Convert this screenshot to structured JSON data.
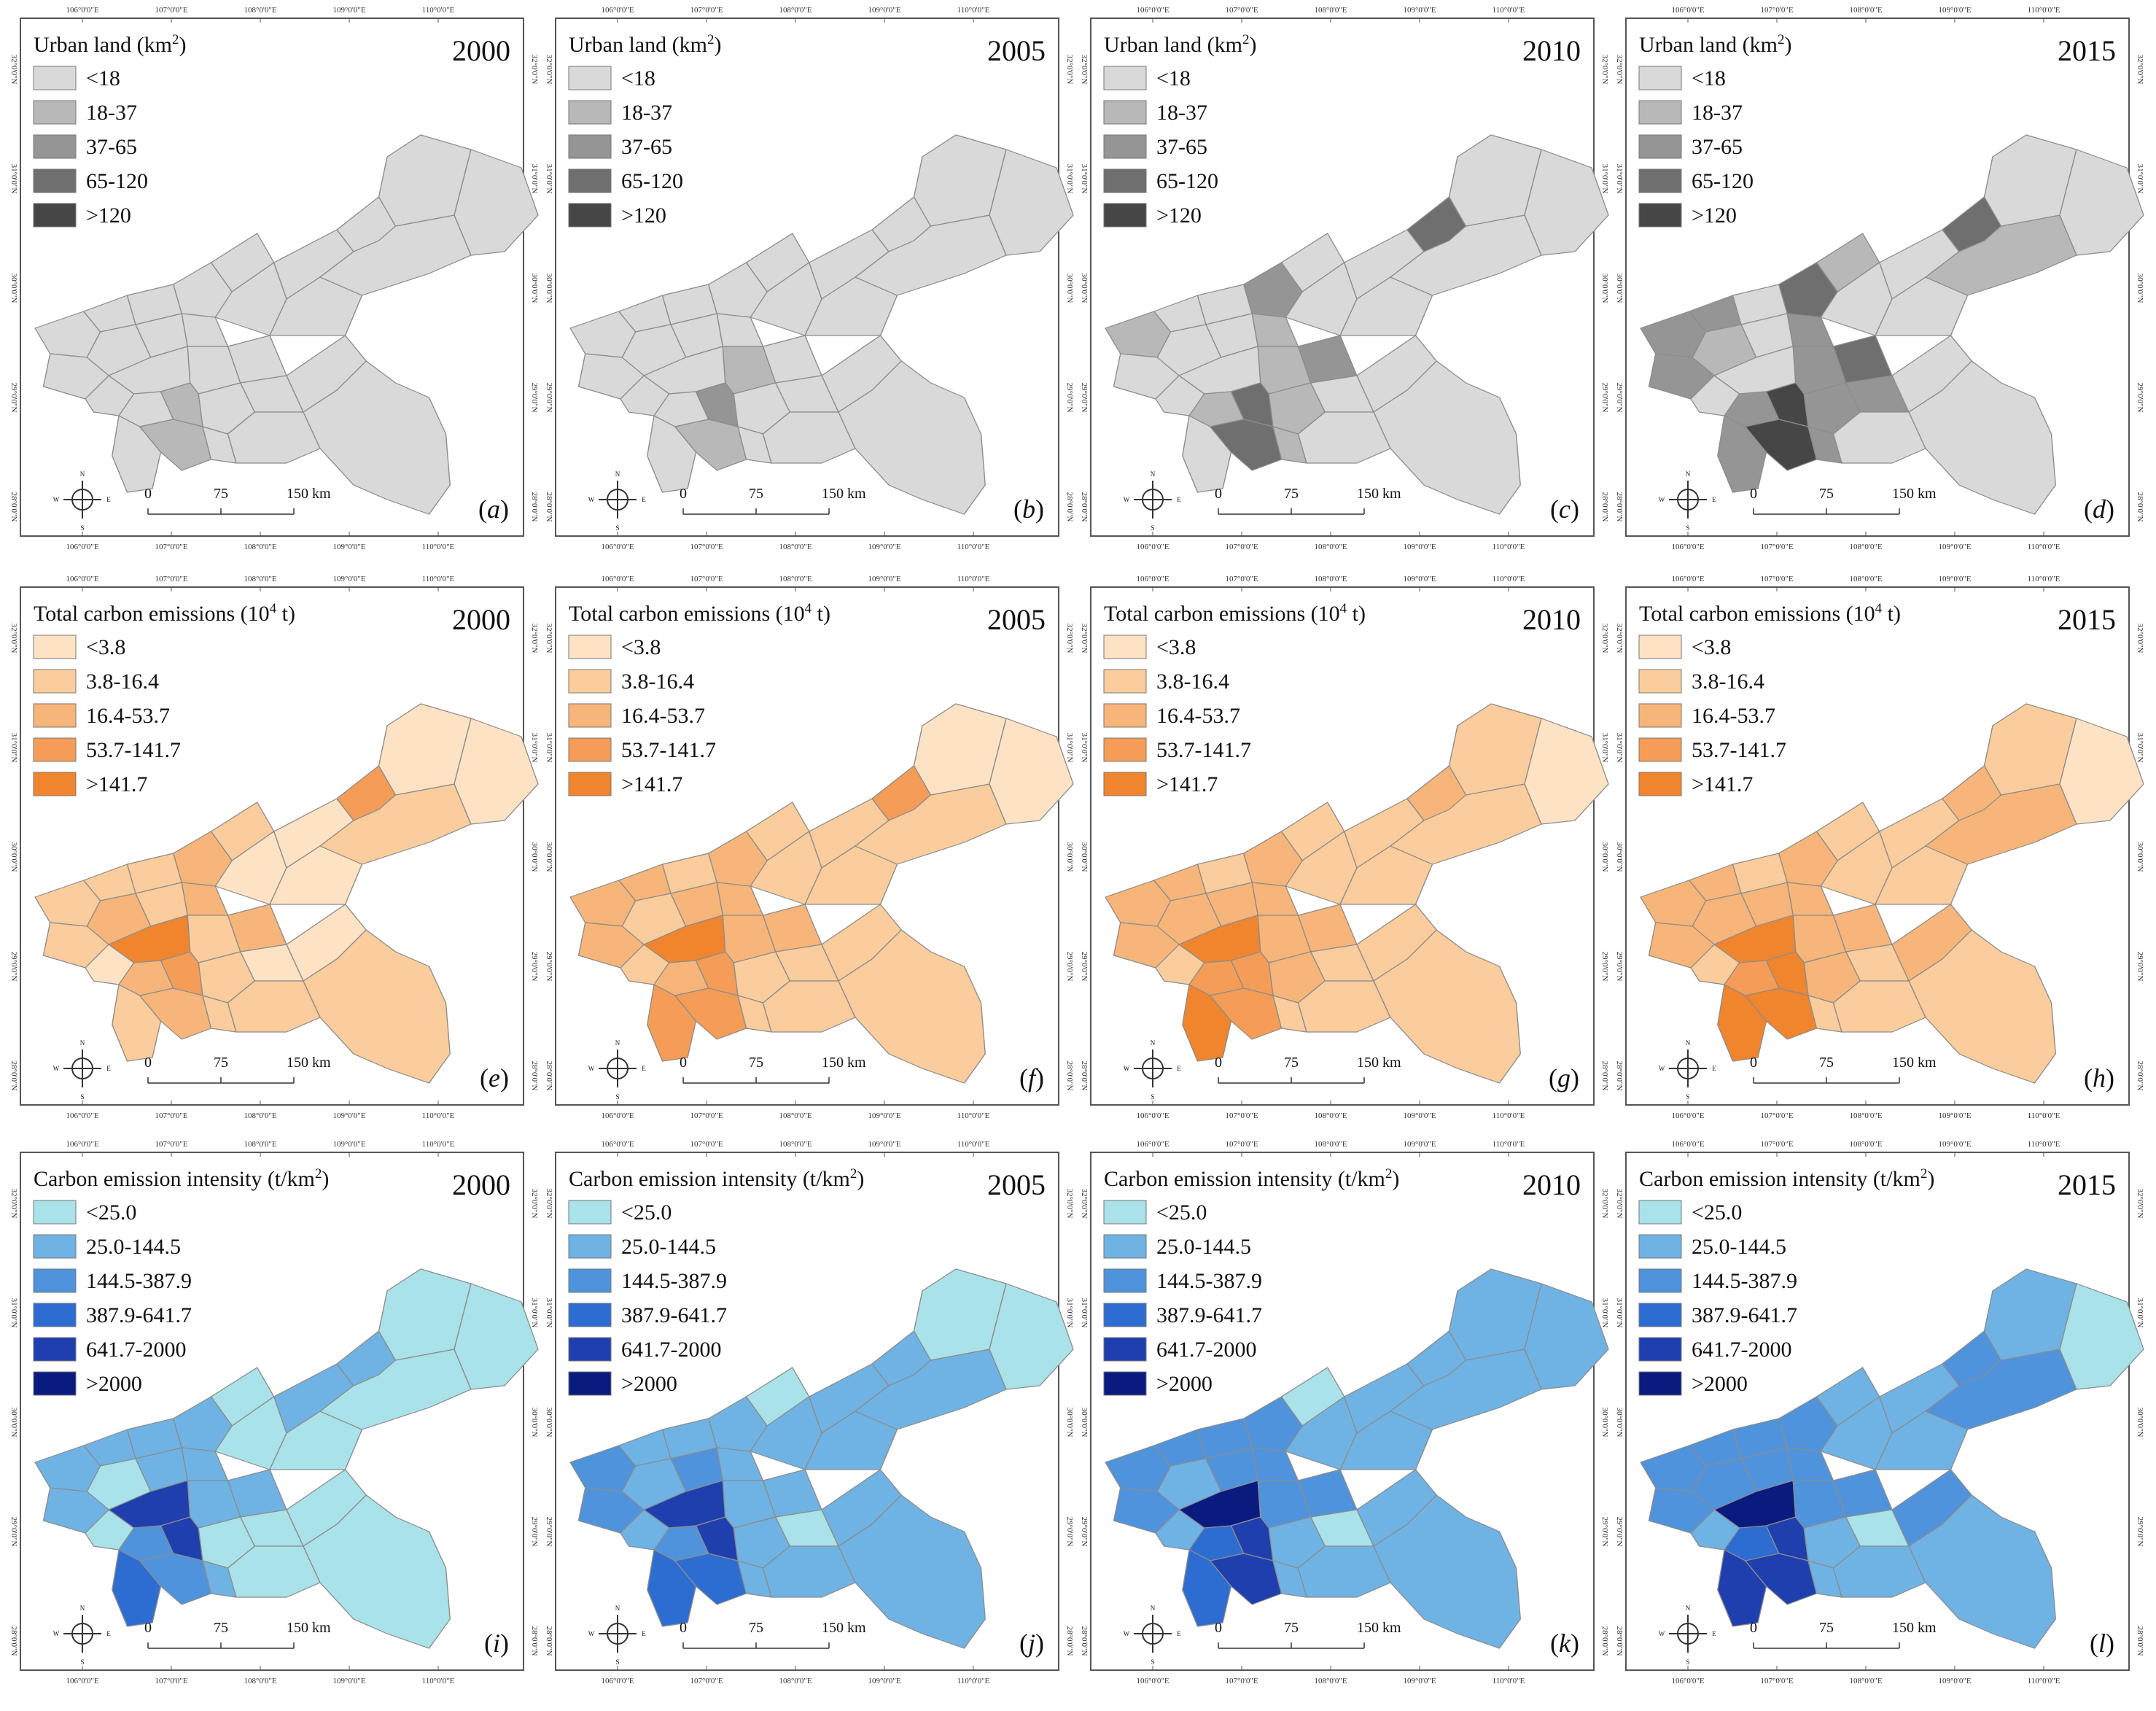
{
  "figure": {
    "columns": [
      {
        "year": "2000"
      },
      {
        "year": "2005"
      },
      {
        "year": "2010"
      },
      {
        "year": "2015"
      }
    ],
    "rows": [
      {
        "key": "urban",
        "legend_title": "Urban land (km",
        "legend_sup": "2",
        "legend_tail": ")",
        "classes": [
          "<18",
          "18-37",
          "37-65",
          "65-120",
          ">120"
        ],
        "colors": [
          "#d9d9d9",
          "#b8b8b8",
          "#959595",
          "#6f6f6f",
          "#464646"
        ],
        "panel_letters": [
          "a",
          "b",
          "c",
          "d"
        ],
        "region_classes": [
          [
            0,
            0,
            0,
            0,
            0,
            0,
            0,
            0,
            0,
            0,
            0,
            0,
            0,
            1,
            1,
            0,
            0,
            0,
            0,
            0,
            0,
            0,
            0,
            0,
            0,
            0,
            0,
            0,
            0
          ],
          [
            0,
            0,
            0,
            0,
            0,
            0,
            0,
            0,
            0,
            0,
            0,
            0,
            1,
            2,
            1,
            0,
            0,
            0,
            0,
            0,
            0,
            0,
            0,
            0,
            0,
            0,
            0,
            0,
            0
          ],
          [
            1,
            0,
            0,
            0,
            0,
            0,
            0,
            0,
            1,
            0,
            2,
            1,
            1,
            3,
            3,
            2,
            1,
            1,
            0,
            0,
            0,
            0,
            0,
            0,
            0,
            3,
            0,
            0,
            0
          ],
          [
            2,
            2,
            2,
            1,
            0,
            0,
            0,
            0,
            2,
            2,
            3,
            2,
            2,
            4,
            4,
            3,
            2,
            2,
            2,
            1,
            0,
            0,
            0,
            0,
            0,
            3,
            1,
            0,
            0
          ]
        ]
      },
      {
        "key": "emissions",
        "legend_title": "Total carbon emissions (10",
        "legend_sup": "4",
        "legend_tail": " t)",
        "classes": [
          "<3.8",
          "3.8-16.4",
          "16.4-53.7",
          "53.7-141.7",
          ">141.7"
        ],
        "colors": [
          "#fde2c4",
          "#fbcc9c",
          "#f8b579",
          "#f59d57",
          "#f0852e"
        ],
        "panel_letters": [
          "e",
          "f",
          "g",
          "h"
        ],
        "region_classes": [
          [
            1,
            1,
            1,
            2,
            0,
            1,
            1,
            4,
            2,
            1,
            2,
            2,
            1,
            3,
            2,
            2,
            1,
            1,
            0,
            1,
            0,
            1,
            0,
            0,
            0,
            3,
            1,
            0,
            0
          ],
          [
            2,
            2,
            2,
            1,
            1,
            1,
            2,
            4,
            2,
            3,
            2,
            2,
            2,
            3,
            3,
            2,
            1,
            1,
            1,
            1,
            1,
            1,
            1,
            1,
            1,
            3,
            1,
            0,
            0
          ],
          [
            2,
            2,
            2,
            2,
            1,
            1,
            2,
            4,
            3,
            4,
            2,
            2,
            2,
            3,
            3,
            2,
            2,
            1,
            1,
            1,
            1,
            1,
            1,
            1,
            1,
            2,
            1,
            1,
            0
          ],
          [
            2,
            2,
            2,
            2,
            1,
            1,
            2,
            4,
            3,
            4,
            2,
            2,
            2,
            4,
            4,
            2,
            2,
            1,
            1,
            1,
            1,
            1,
            1,
            1,
            2,
            2,
            2,
            1,
            0
          ]
        ]
      },
      {
        "key": "intensity",
        "legend_title": "Carbon emission intensity (t/km",
        "legend_sup": "2",
        "legend_tail": ")",
        "classes": [
          "<25.0",
          "25.0-144.5",
          "144.5-387.9",
          "387.9-641.7",
          "641.7-2000",
          ">2000"
        ],
        "colors": [
          "#a9e2e9",
          "#6fb3e4",
          "#4f93dd",
          "#2d6dd1",
          "#1f3faf",
          "#0a1b80"
        ],
        "panel_letters": [
          "i",
          "j",
          "k",
          "l"
        ],
        "region_classes": [
          [
            1,
            1,
            1,
            0,
            0,
            1,
            1,
            4,
            2,
            3,
            1,
            1,
            1,
            4,
            2,
            1,
            0,
            1,
            0,
            0,
            0,
            0,
            1,
            0,
            0,
            1,
            0,
            0,
            0
          ],
          [
            2,
            1,
            2,
            1,
            1,
            1,
            2,
            4,
            2,
            3,
            1,
            1,
            1,
            4,
            3,
            1,
            1,
            1,
            0,
            0,
            1,
            1,
            1,
            1,
            1,
            1,
            1,
            0,
            0
          ],
          [
            2,
            2,
            2,
            1,
            1,
            2,
            2,
            5,
            3,
            3,
            2,
            2,
            2,
            4,
            4,
            2,
            1,
            1,
            0,
            0,
            1,
            1,
            1,
            1,
            1,
            1,
            1,
            1,
            1
          ],
          [
            2,
            2,
            2,
            2,
            1,
            2,
            2,
            5,
            3,
            4,
            2,
            2,
            2,
            4,
            4,
            2,
            1,
            1,
            0,
            1,
            1,
            1,
            1,
            1,
            2,
            2,
            2,
            1,
            0
          ]
        ]
      }
    ],
    "axes": {
      "lon_labels": [
        "106°0'0\"E",
        "107°0'0\"E",
        "108°0'0\"E",
        "109°0'0\"E",
        "110°0'0\"E"
      ],
      "lat_labels": [
        "32°0'0\"N",
        "31°0'0\"N",
        "30°0'0\"N",
        "29°0'0\"N",
        "28°0'0\"N"
      ]
    },
    "scale_bar": {
      "labels": [
        "0",
        "75",
        "150 km"
      ]
    },
    "north_arrow": {
      "letters": [
        "N",
        "S",
        "W",
        "E"
      ]
    }
  }
}
